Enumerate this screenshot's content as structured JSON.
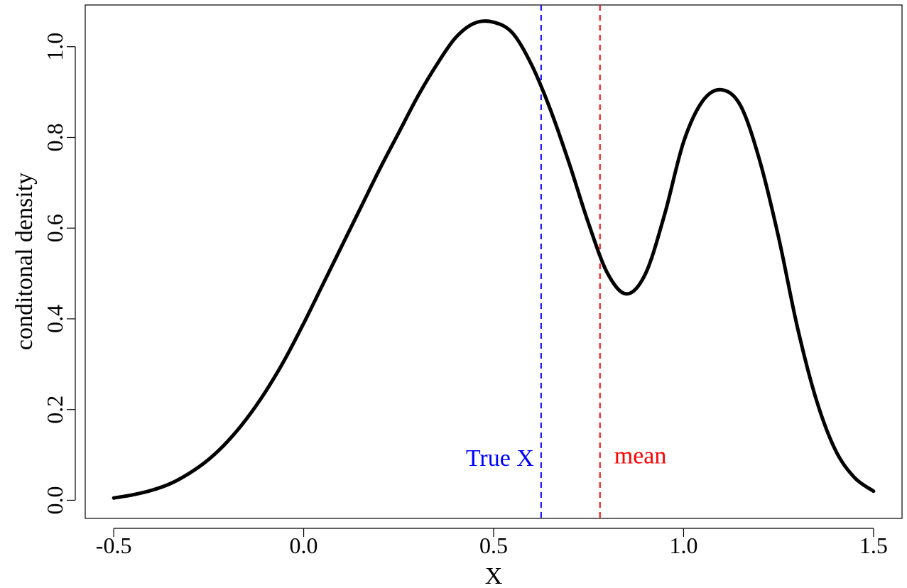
{
  "chart_data": {
    "type": "line",
    "title": "",
    "xlabel": "X",
    "ylabel": "conditonal density",
    "xlim": [
      -0.575,
      1.575
    ],
    "ylim": [
      -0.04,
      1.092
    ],
    "xticks": [
      -0.5,
      0.0,
      0.5,
      1.0,
      1.5
    ],
    "xtick_labels": [
      "-0.5",
      "0.0",
      "0.5",
      "1.0",
      "1.5"
    ],
    "yticks": [
      0.0,
      0.2,
      0.4,
      0.6,
      0.8,
      1.0
    ],
    "ytick_labels": [
      "0.0",
      "0.2",
      "0.4",
      "0.6",
      "0.8",
      "1.0"
    ],
    "grid": false,
    "legend": "none",
    "series": [
      {
        "color": "#000000",
        "x": [
          -0.5,
          -0.45,
          -0.4,
          -0.35,
          -0.3,
          -0.25,
          -0.2,
          -0.15,
          -0.1,
          -0.05,
          0.0,
          0.05,
          0.1,
          0.15,
          0.2,
          0.25,
          0.3,
          0.35,
          0.4,
          0.45,
          0.5,
          0.55,
          0.6,
          0.65,
          0.7,
          0.75,
          0.8,
          0.85,
          0.9,
          0.95,
          1.0,
          1.05,
          1.1,
          1.15,
          1.2,
          1.25,
          1.3,
          1.35,
          1.4,
          1.45,
          1.5
        ],
        "y": [
          0.005,
          0.012,
          0.022,
          0.037,
          0.06,
          0.09,
          0.13,
          0.18,
          0.24,
          0.31,
          0.39,
          0.475,
          0.56,
          0.645,
          0.73,
          0.81,
          0.89,
          0.96,
          1.02,
          1.052,
          1.054,
          1.03,
          0.96,
          0.86,
          0.74,
          0.61,
          0.5,
          0.455,
          0.5,
          0.63,
          0.79,
          0.88,
          0.905,
          0.87,
          0.75,
          0.58,
          0.38,
          0.22,
          0.11,
          0.05,
          0.02
        ]
      }
    ],
    "vlines": [
      {
        "x": 0.625,
        "color": "#0000ff",
        "style": "dashed",
        "label": "True X",
        "label_y": 0.095,
        "label_side": "left"
      },
      {
        "x": 0.78,
        "color": "#ff0000",
        "style": "dashed",
        "label": "mean",
        "label_y": 0.1,
        "label_side": "right"
      }
    ]
  }
}
